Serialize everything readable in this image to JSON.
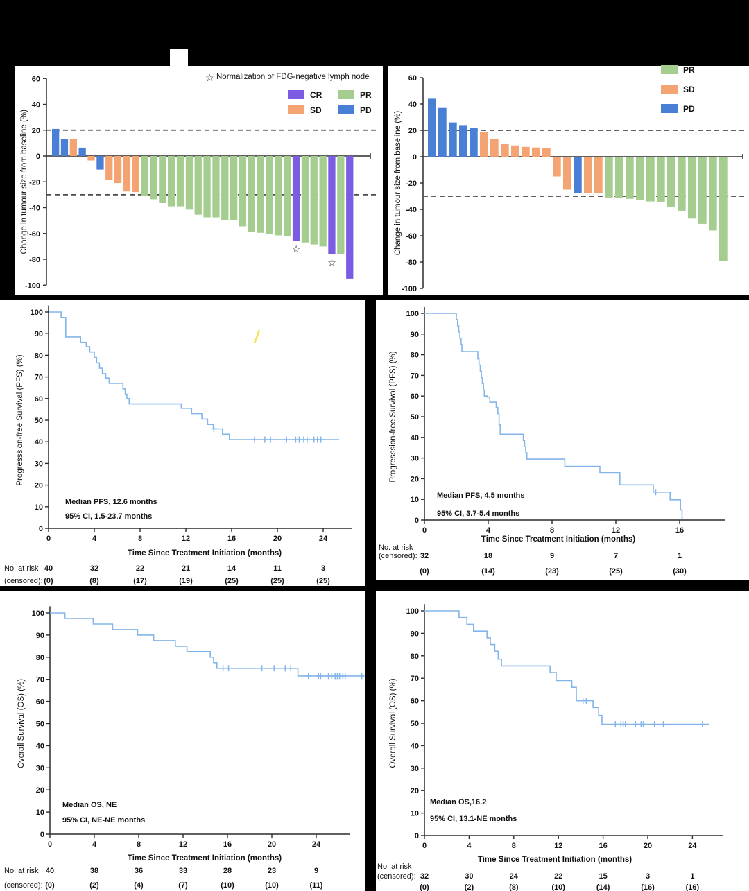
{
  "page": {
    "background": "#000000",
    "panel_background": "#ffffff"
  },
  "colors": {
    "cr": "#7C5CE2",
    "pr": "#A5CD90",
    "sd": "#F4A473",
    "pd": "#4A7FD6",
    "km_line": "#84B5E9",
    "axis": "#2B2B2B",
    "text": "#111111",
    "dashed_line": "#4A4A4A",
    "artifact_yellow": "#F2E34D"
  },
  "chart_data": [
    {
      "id": "waterfall_left",
      "type": "bar",
      "ylabel": "Change in tumour size from baseline (%)",
      "ylim": [
        -100,
        60
      ],
      "yticks": [
        60,
        40,
        20,
        0,
        -20,
        -40,
        -60,
        -80,
        -100
      ],
      "reference_lines": [
        20,
        -30
      ],
      "legend_note": {
        "symbol": "☆",
        "text": "Normalization of FDG-negative lymph node"
      },
      "legend": [
        {
          "label": "CR",
          "color": "cr"
        },
        {
          "label": "PR",
          "color": "pr"
        },
        {
          "label": "SD",
          "color": "sd"
        },
        {
          "label": "PD",
          "color": "pd"
        }
      ],
      "bars": [
        {
          "value": 21,
          "response": "PD"
        },
        {
          "value": 13,
          "response": "PD"
        },
        {
          "value": 13,
          "response": "SD"
        },
        {
          "value": 6.5,
          "response": "PD"
        },
        {
          "value": -3.5,
          "response": "SD"
        },
        {
          "value": -10.5,
          "response": "PD"
        },
        {
          "value": -18.5,
          "response": "SD"
        },
        {
          "value": -21,
          "response": "SD"
        },
        {
          "value": -27.5,
          "response": "SD"
        },
        {
          "value": -28,
          "response": "SD"
        },
        {
          "value": -31,
          "response": "PR"
        },
        {
          "value": -33.5,
          "response": "PR"
        },
        {
          "value": -36.5,
          "response": "PR"
        },
        {
          "value": -39,
          "response": "PR"
        },
        {
          "value": -39,
          "response": "PR"
        },
        {
          "value": -41.5,
          "response": "PR"
        },
        {
          "value": -45.5,
          "response": "PR"
        },
        {
          "value": -47.5,
          "response": "PR"
        },
        {
          "value": -47.5,
          "response": "PR"
        },
        {
          "value": -49.5,
          "response": "PR"
        },
        {
          "value": -49.5,
          "response": "PR"
        },
        {
          "value": -54.5,
          "response": "PR"
        },
        {
          "value": -58.5,
          "response": "PR"
        },
        {
          "value": -59.5,
          "response": "PR"
        },
        {
          "value": -60.5,
          "response": "PR"
        },
        {
          "value": -61.5,
          "response": "PR"
        },
        {
          "value": -62,
          "response": "PR"
        },
        {
          "value": -65.5,
          "response": "CR",
          "star": true
        },
        {
          "value": -67,
          "response": "PR"
        },
        {
          "value": -68.5,
          "response": "PR"
        },
        {
          "value": -70,
          "response": "PR"
        },
        {
          "value": -76,
          "response": "CR",
          "star": true
        },
        {
          "value": -76,
          "response": "PR"
        },
        {
          "value": -95,
          "response": "CR"
        }
      ]
    },
    {
      "id": "waterfall_right",
      "type": "bar",
      "ylabel": "Change in tumour size from baseline (%)",
      "ylim": [
        -100,
        60
      ],
      "yticks": [
        60,
        40,
        20,
        0,
        -20,
        -40,
        -60,
        -80,
        -100
      ],
      "reference_lines": [
        20,
        -30
      ],
      "legend": [
        {
          "label": "PR",
          "color": "pr"
        },
        {
          "label": "SD",
          "color": "sd"
        },
        {
          "label": "PD",
          "color": "pd"
        }
      ],
      "bars": [
        {
          "value": 44,
          "response": "PD"
        },
        {
          "value": 37,
          "response": "PD"
        },
        {
          "value": 26,
          "response": "PD"
        },
        {
          "value": 24,
          "response": "PD"
        },
        {
          "value": 22,
          "response": "PD"
        },
        {
          "value": 18.5,
          "response": "SD"
        },
        {
          "value": 13.5,
          "response": "SD"
        },
        {
          "value": 10,
          "response": "SD"
        },
        {
          "value": 8.5,
          "response": "SD"
        },
        {
          "value": 7.5,
          "response": "SD"
        },
        {
          "value": 7,
          "response": "SD"
        },
        {
          "value": 6.5,
          "response": "SD"
        },
        {
          "value": -15,
          "response": "SD"
        },
        {
          "value": -25,
          "response": "SD"
        },
        {
          "value": -27.5,
          "response": "PD"
        },
        {
          "value": -27.5,
          "response": "SD"
        },
        {
          "value": -27.5,
          "response": "SD"
        },
        {
          "value": -31,
          "response": "PR"
        },
        {
          "value": -31.5,
          "response": "PR"
        },
        {
          "value": -32,
          "response": "PR"
        },
        {
          "value": -33,
          "response": "PR"
        },
        {
          "value": -34,
          "response": "PR"
        },
        {
          "value": -34.5,
          "response": "PR"
        },
        {
          "value": -38,
          "response": "PR"
        },
        {
          "value": -41,
          "response": "PR"
        },
        {
          "value": -47,
          "response": "PR"
        },
        {
          "value": -51,
          "response": "PR"
        },
        {
          "value": -56,
          "response": "PR"
        },
        {
          "value": -79,
          "response": "PR"
        }
      ]
    },
    {
      "id": "km_pfs_left",
      "type": "line",
      "ylabel": "Progresssion-free Survival (PFS) (%)",
      "xlabel": "Time Since Treatment Initiation (months)",
      "ylim": [
        0,
        100
      ],
      "yticks": [
        0,
        10,
        20,
        30,
        40,
        50,
        60,
        70,
        80,
        90,
        100
      ],
      "xticks": [
        0,
        4,
        8,
        12,
        16,
        20,
        24
      ],
      "median_text": "Median PFS, 12.6 months",
      "ci_text": "95% CI, 1.5-23.7 months",
      "steps": [
        [
          0,
          100
        ],
        [
          1.1,
          97.5
        ],
        [
          1.5,
          88.5
        ],
        [
          2.8,
          86
        ],
        [
          3.3,
          84
        ],
        [
          3.6,
          81.5
        ],
        [
          4.0,
          79
        ],
        [
          4.2,
          76.5
        ],
        [
          4.45,
          74
        ],
        [
          4.7,
          71.5
        ],
        [
          5.0,
          69.5
        ],
        [
          5.3,
          67
        ],
        [
          6.5,
          64.5
        ],
        [
          6.7,
          62
        ],
        [
          6.85,
          60
        ],
        [
          7.05,
          57.5
        ],
        [
          11.6,
          55.5
        ],
        [
          12.5,
          53
        ],
        [
          13.4,
          50.5
        ],
        [
          13.9,
          48
        ],
        [
          14.4,
          46
        ],
        [
          15.2,
          43.5
        ],
        [
          15.8,
          41
        ],
        [
          25.4,
          41
        ]
      ],
      "censor_marks": [
        [
          14.45,
          46
        ],
        [
          18.0,
          41
        ],
        [
          18.9,
          41
        ],
        [
          19.4,
          41
        ],
        [
          20.8,
          41
        ],
        [
          21.6,
          41
        ],
        [
          21.9,
          41
        ],
        [
          22.3,
          41
        ],
        [
          22.6,
          41
        ],
        [
          23.2,
          41
        ],
        [
          23.5,
          41
        ],
        [
          23.8,
          41
        ]
      ],
      "risk_table": {
        "row_label_1": "No. at risk",
        "row_label_2": "(censored):",
        "months": [
          0,
          4,
          8,
          12,
          16,
          20,
          24
        ],
        "n": [
          "40",
          "32",
          "22",
          "21",
          "14",
          "11",
          "3"
        ],
        "censored": [
          "(0)",
          "(8)",
          "(17)",
          "(19)",
          "(25)",
          "(25)",
          "(25)"
        ]
      },
      "has_artifact_mark": true
    },
    {
      "id": "km_pfs_right",
      "type": "line",
      "ylabel": "Progresssion-free Survival (PFS) (%)",
      "xlabel": "Time Since Treatment Initiation (months)",
      "ylim": [
        0,
        100
      ],
      "yticks": [
        0,
        10,
        20,
        30,
        40,
        50,
        60,
        70,
        80,
        90,
        100
      ],
      "xticks": [
        0,
        4,
        8,
        12,
        16
      ],
      "median_text": "Median PFS, 4.5 months",
      "ci_text": "95% CI, 3.7-5.4 months",
      "steps": [
        [
          0,
          100
        ],
        [
          2.0,
          97
        ],
        [
          2.08,
          94
        ],
        [
          2.15,
          91
        ],
        [
          2.22,
          88
        ],
        [
          2.3,
          85
        ],
        [
          2.35,
          81.5
        ],
        [
          3.35,
          78
        ],
        [
          3.42,
          75
        ],
        [
          3.5,
          72
        ],
        [
          3.57,
          69
        ],
        [
          3.63,
          66
        ],
        [
          3.7,
          63
        ],
        [
          3.75,
          60
        ],
        [
          3.95,
          59.5
        ],
        [
          4.1,
          57
        ],
        [
          4.5,
          54.5
        ],
        [
          4.6,
          51.5
        ],
        [
          4.68,
          46
        ],
        [
          4.75,
          41.5
        ],
        [
          6.2,
          38.5
        ],
        [
          6.28,
          35.5
        ],
        [
          6.35,
          32.5
        ],
        [
          6.42,
          29.5
        ],
        [
          8.8,
          26
        ],
        [
          11.0,
          23
        ],
        [
          12.25,
          17
        ],
        [
          14.35,
          13.5
        ],
        [
          15.4,
          9.8
        ],
        [
          16.05,
          4.9
        ],
        [
          16.15,
          0.5
        ],
        [
          16.25,
          0.5
        ]
      ],
      "censor_marks": [
        [
          14.5,
          13.5
        ]
      ],
      "risk_table": {
        "row_label_1": "No. at risk",
        "row_label_2": "(censored):",
        "months": [
          0,
          4,
          8,
          12,
          16
        ],
        "n": [
          "32",
          "18",
          "9",
          "7",
          "1"
        ],
        "censored": [
          "(0)",
          "(14)",
          "(23)",
          "(25)",
          "(30)"
        ]
      }
    },
    {
      "id": "km_os_left",
      "type": "line",
      "ylabel": "Overall Survival (OS) (%)",
      "xlabel": "Time Since Treatment Initiation (months)",
      "ylim": [
        0,
        100
      ],
      "yticks": [
        0,
        10,
        20,
        30,
        40,
        50,
        60,
        70,
        80,
        90,
        100
      ],
      "xticks": [
        0,
        4,
        8,
        12,
        16,
        20,
        24
      ],
      "median_text": "Median OS, NE",
      "ci_text": "95% CI, NE-NE months",
      "steps": [
        [
          0,
          100
        ],
        [
          1.35,
          97.5
        ],
        [
          3.9,
          95
        ],
        [
          5.65,
          92.5
        ],
        [
          7.9,
          90
        ],
        [
          9.35,
          87.5
        ],
        [
          11.3,
          85
        ],
        [
          12.35,
          82.5
        ],
        [
          14.45,
          80
        ],
        [
          14.75,
          77.5
        ],
        [
          15.05,
          75
        ],
        [
          22.35,
          71.5
        ],
        [
          28.3,
          71.5
        ]
      ],
      "censor_marks": [
        [
          15.6,
          75
        ],
        [
          16.1,
          75
        ],
        [
          19.1,
          75
        ],
        [
          20.2,
          75
        ],
        [
          21.2,
          75
        ],
        [
          21.7,
          75
        ],
        [
          23.3,
          71.5
        ],
        [
          24.2,
          71.5
        ],
        [
          24.4,
          71.5
        ],
        [
          25.1,
          71.5
        ],
        [
          25.4,
          71.5
        ],
        [
          25.7,
          71.5
        ],
        [
          25.9,
          71.5
        ],
        [
          26.1,
          71.5
        ],
        [
          26.4,
          71.5
        ],
        [
          26.6,
          71.5
        ],
        [
          28.1,
          71.5
        ]
      ],
      "risk_table": {
        "row_label_1": "No. at risk",
        "row_label_2": "(censored):",
        "months": [
          0,
          4,
          8,
          12,
          16,
          20,
          24
        ],
        "n": [
          "40",
          "38",
          "36",
          "33",
          "28",
          "23",
          "9"
        ],
        "censored": [
          "(0)",
          "(2)",
          "(4)",
          "(7)",
          "(10)",
          "(10)",
          "(11)"
        ]
      }
    },
    {
      "id": "km_os_right",
      "type": "line",
      "ylabel": "Overall Survival (OS) (%)",
      "xlabel": "Time Since Treatment Initiation (months)",
      "ylim": [
        0,
        100
      ],
      "yticks": [
        0,
        10,
        20,
        30,
        40,
        50,
        60,
        70,
        80,
        90,
        100
      ],
      "xticks": [
        0,
        4,
        8,
        12,
        16,
        20,
        24
      ],
      "median_text": "Median OS,16.2",
      "ci_text": "95% CI, 13.1-NE months",
      "steps": [
        [
          0,
          100
        ],
        [
          3.1,
          97
        ],
        [
          3.8,
          94
        ],
        [
          4.4,
          91
        ],
        [
          5.6,
          88
        ],
        [
          5.9,
          85
        ],
        [
          6.3,
          82
        ],
        [
          6.6,
          78.5
        ],
        [
          6.9,
          75.5
        ],
        [
          11.25,
          72.5
        ],
        [
          11.8,
          69
        ],
        [
          13.2,
          66
        ],
        [
          13.6,
          60
        ],
        [
          15.1,
          57
        ],
        [
          15.6,
          53.5
        ],
        [
          15.9,
          49.5
        ],
        [
          25.5,
          49.5
        ]
      ],
      "censor_marks": [
        [
          14.2,
          60
        ],
        [
          14.5,
          60
        ],
        [
          17.1,
          49.5
        ],
        [
          17.6,
          49.5
        ],
        [
          17.8,
          49.5
        ],
        [
          18.0,
          49.5
        ],
        [
          18.9,
          49.5
        ],
        [
          19.4,
          49.5
        ],
        [
          19.6,
          49.5
        ],
        [
          20.6,
          49.5
        ],
        [
          21.4,
          49.5
        ],
        [
          24.9,
          49.5
        ]
      ],
      "risk_table": {
        "row_label_1": "No. at risk",
        "row_label_2": "(censored):",
        "months": [
          0,
          4,
          8,
          12,
          16,
          20,
          24
        ],
        "n": [
          "32",
          "30",
          "24",
          "22",
          "15",
          "3",
          "1"
        ],
        "censored": [
          "(0)",
          "(2)",
          "(8)",
          "(10)",
          "(14)",
          "(16)",
          "(16)"
        ]
      }
    }
  ]
}
